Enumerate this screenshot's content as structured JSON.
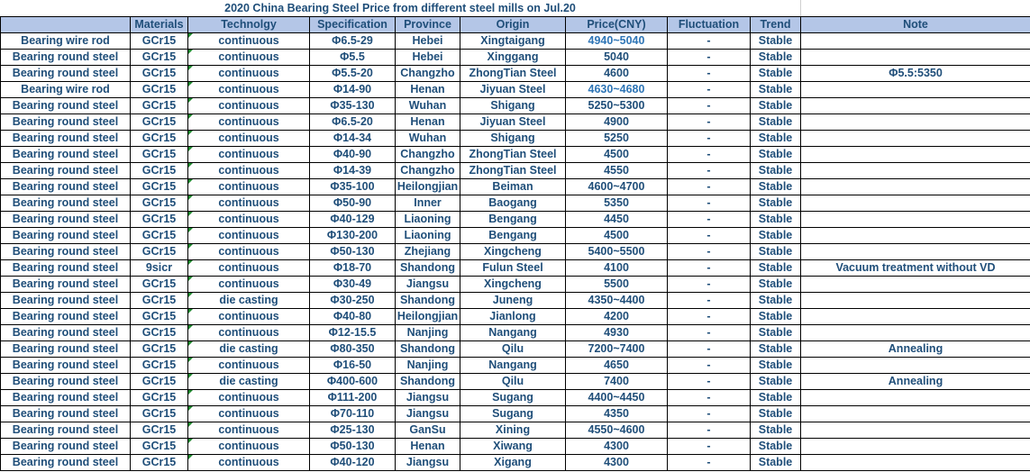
{
  "title": "2020 China Bearing Steel Price from different steel mills on  Jul.20",
  "headers": [
    "",
    "Materials",
    "Technolgy",
    "Specification",
    "Province",
    "Origin",
    "Price(CNY)",
    "Fluctuation",
    "Trend",
    "Note"
  ],
  "colors": {
    "header_bg": "#b4c6e7",
    "text": "#1f4e79",
    "marker": "#1e8a2e"
  },
  "rows": [
    [
      "Bearing wire rod",
      "GCr15",
      "continuous",
      "Φ6.5-29",
      "Hebei",
      "Xingtaigang",
      "4940~5040",
      "-",
      "Stable",
      ""
    ],
    [
      "Bearing round steel",
      "GCr15",
      "continuous",
      "Φ5.5",
      "Hebei",
      "Xinggang",
      "5040",
      "-",
      "Stable",
      ""
    ],
    [
      "Bearing round steel",
      "GCr15",
      "continuous",
      "Φ5.5-20",
      "Changzho",
      "ZhongTian Steel",
      "4600",
      "-",
      "Stable",
      "Φ5.5:5350"
    ],
    [
      "Bearing wire rod",
      "GCr15",
      "continuous",
      "Φ14-90",
      "Henan",
      "Jiyuan Steel",
      "4630~4680",
      "-",
      "Stable",
      ""
    ],
    [
      "Bearing round steel",
      "GCr15",
      "continuous",
      "Φ35-130",
      "Wuhan",
      "Shigang",
      "5250~5300",
      "-",
      "Stable",
      ""
    ],
    [
      "Bearing round steel",
      "GCr15",
      "continuous",
      "Φ6.5-20",
      "Henan",
      "Jiyuan Steel",
      "4900",
      "-",
      "Stable",
      ""
    ],
    [
      "Bearing round steel",
      "GCr15",
      "continuous",
      "Φ14-34",
      "Wuhan",
      "Shigang",
      "5250",
      "-",
      "Stable",
      ""
    ],
    [
      "Bearing round steel",
      "GCr15",
      "continuous",
      "Φ40-90",
      "Changzho",
      "ZhongTian Steel",
      "4500",
      "-",
      "Stable",
      ""
    ],
    [
      "Bearing round steel",
      "GCr15",
      "continuous",
      "Φ14-39",
      "Changzho",
      "ZhongTian Steel",
      "4550",
      "-",
      "Stable",
      ""
    ],
    [
      "Bearing round steel",
      "GCr15",
      "continuous",
      "Φ35-100",
      "Heilongjian",
      "Beiman",
      "4600~4700",
      "-",
      "Stable",
      ""
    ],
    [
      "Bearing round steel",
      "GCr15",
      "continuous",
      "Φ50-90",
      "Inner",
      "Baogang",
      "5350",
      "-",
      "Stable",
      ""
    ],
    [
      "Bearing round steel",
      "GCr15",
      "continuous",
      "Φ40-129",
      "Liaoning",
      "Bengang",
      "4450",
      "-",
      "Stable",
      ""
    ],
    [
      "Bearing round steel",
      "GCr15",
      "continuous",
      "Φ130-200",
      "Liaoning",
      "Bengang",
      "4500",
      "-",
      "Stable",
      ""
    ],
    [
      "Bearing round steel",
      "GCr15",
      "continuous",
      "Φ50-130",
      "Zhejiang",
      "Xingcheng",
      "5400~5500",
      "-",
      "Stable",
      ""
    ],
    [
      "Bearing round steel",
      "9sicr",
      "continuous",
      "Φ18-70",
      "Shandong",
      "Fulun Steel",
      "4100",
      "-",
      "Stable",
      "Vacuum treatment without VD"
    ],
    [
      "Bearing round steel",
      "GCr15",
      "continuous",
      "Φ30-49",
      "Jiangsu",
      "Xingcheng",
      "5500",
      "-",
      "Stable",
      ""
    ],
    [
      "Bearing round steel",
      "GCr15",
      "die casting",
      "Φ30-250",
      "Shandong",
      "Juneng",
      "4350~4400",
      "-",
      "Stable",
      ""
    ],
    [
      "Bearing round steel",
      "GCr15",
      "continuous",
      "Φ40-80",
      "Heilongjian",
      "Jianlong",
      "4200",
      "-",
      "Stable",
      ""
    ],
    [
      "Bearing round steel",
      "GCr15",
      "continuous",
      "Φ12-15.5",
      "Nanjing",
      "Nangang",
      "4930",
      "-",
      "Stable",
      ""
    ],
    [
      "Bearing round steel",
      "GCr15",
      "die casting",
      "Φ80-350",
      "Shandong",
      "Qilu",
      "7200~7400",
      "-",
      "Stable",
      "Annealing"
    ],
    [
      "Bearing round steel",
      "GCr15",
      "continuous",
      "Φ16-50",
      "Nanjing",
      "Nangang",
      "4650",
      "-",
      "Stable",
      ""
    ],
    [
      "Bearing round steel",
      "GCr15",
      "die casting",
      "Φ400-600",
      "Shandong",
      "Qilu",
      "7400",
      "-",
      "Stable",
      "Annealing"
    ],
    [
      "Bearing round steel",
      "GCr15",
      "continuous",
      "Φ111-200",
      "Jiangsu",
      "Sugang",
      "4400~4450",
      "-",
      "Stable",
      ""
    ],
    [
      "Bearing round steel",
      "GCr15",
      "continuous",
      "Φ70-110",
      "Jiangsu",
      "Sugang",
      "4350",
      "-",
      "Stable",
      ""
    ],
    [
      "Bearing round steel",
      "GCr15",
      "continuous",
      "Φ25-130",
      "GanSu",
      "Xining",
      "4550~4600",
      "-",
      "Stable",
      ""
    ],
    [
      "Bearing round steel",
      "GCr15",
      "continuous",
      "Φ50-130",
      "Henan",
      "Xiwang",
      "4300",
      "-",
      "Stable",
      ""
    ],
    [
      "Bearing round steel",
      "GCr15",
      "continuous",
      "Φ40-120",
      "Jiangsu",
      "Xigang",
      "4300",
      "-",
      "Stable",
      ""
    ]
  ]
}
